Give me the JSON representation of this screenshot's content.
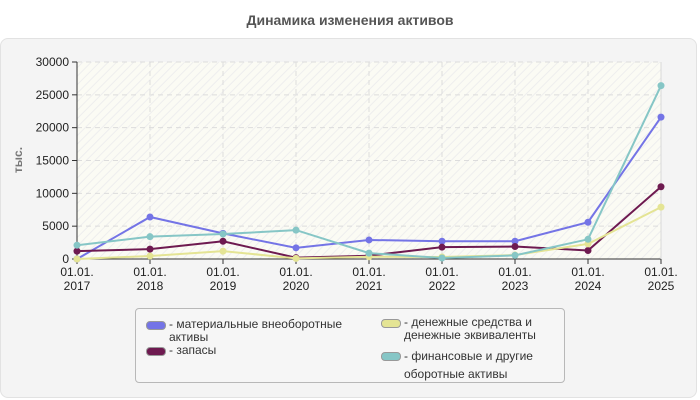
{
  "title": "Динамика изменения активов",
  "chart_data": {
    "type": "line",
    "title": "Динамика изменения активов",
    "xlabel": "",
    "ylabel": "тыс.",
    "ylim": [
      0,
      30000
    ],
    "yticks": [
      0,
      5000,
      10000,
      15000,
      20000,
      25000,
      30000
    ],
    "grid": true,
    "legend_position": "bottom",
    "categories": [
      "01.01.\n2017",
      "01.01.\n2018",
      "01.01.\n2019",
      "01.01.\n2020",
      "01.01.\n2021",
      "01.01.\n2022",
      "01.01.\n2023",
      "01.01.\n2024",
      "01.01.\n2025"
    ],
    "series": [
      {
        "name": "материальные внеоборотные активы",
        "color": "#7474e6",
        "values": [
          0,
          6400,
          3900,
          1700,
          2900,
          2700,
          2700,
          5600,
          21600
        ]
      },
      {
        "name": "запасы",
        "color": "#6e1a50",
        "values": [
          1200,
          1500,
          2700,
          200,
          500,
          1800,
          1900,
          1300,
          11000
        ]
      },
      {
        "name": "денежные средства и денежные эквиваленты",
        "color": "#e4e494",
        "values": [
          0,
          450,
          1200,
          100,
          350,
          300,
          600,
          2300,
          7900
        ]
      },
      {
        "name": "финансовые и другие оборотные активы",
        "color": "#86c6c6",
        "values": [
          2100,
          3400,
          3800,
          4400,
          900,
          150,
          550,
          3000,
          26400
        ]
      }
    ]
  },
  "legend": {
    "items": [
      {
        "label": "- материальные внеоборотные\nактивы",
        "color": "#7474e6"
      },
      {
        "label": "- запасы",
        "color": "#6e1a50"
      },
      {
        "label": "- денежные средства и\nденежные эквиваленты",
        "color": "#e4e494"
      },
      {
        "label": "- финансовые и другие\nоборотные активы",
        "color": "#86c6c6"
      }
    ]
  }
}
